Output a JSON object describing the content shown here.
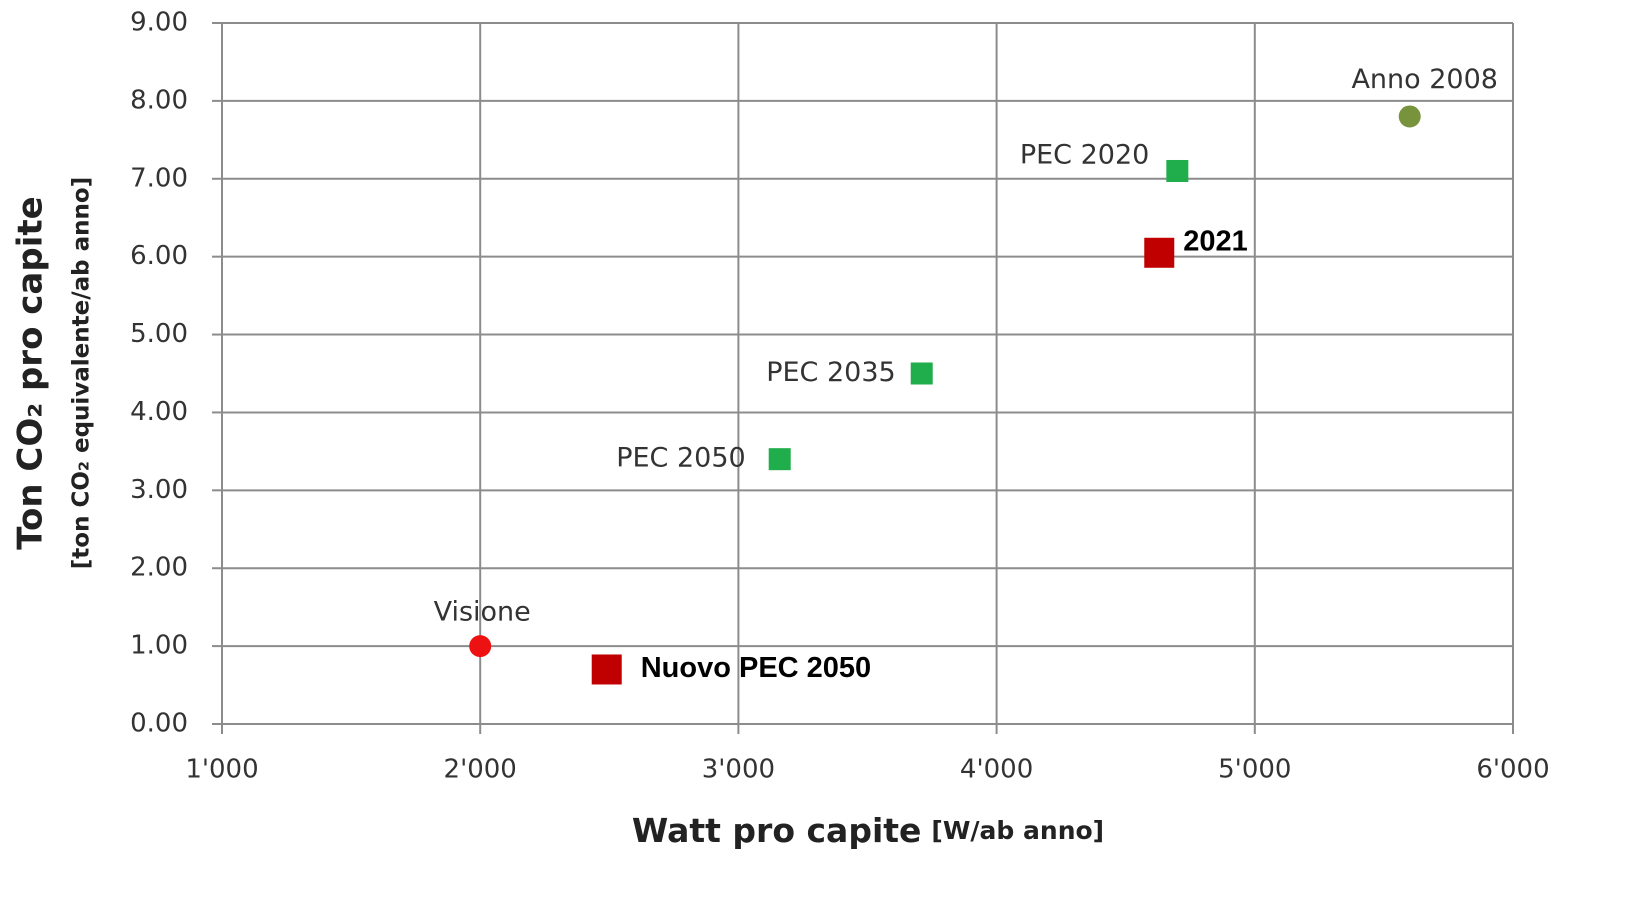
{
  "chart_data": {
    "type": "scatter",
    "y_axis_title": "Ton CO₂ pro capite",
    "y_axis_subtitle": "[ton CO₂ equivalente/ab anno]",
    "x_axis_title": "Watt pro capite",
    "x_axis_unit": "[W/ab anno]",
    "xlim": [
      1000,
      6000
    ],
    "xticks": [
      {
        "value": 1000,
        "label": "1'000"
      },
      {
        "value": 2000,
        "label": "2'000"
      },
      {
        "value": 3000,
        "label": "3'000"
      },
      {
        "value": 4000,
        "label": "4'000"
      },
      {
        "value": 5000,
        "label": "5'000"
      },
      {
        "value": 6000,
        "label": "6'000"
      }
    ],
    "ylim": [
      0,
      9
    ],
    "yticks": [
      {
        "value": 0,
        "label": "0.00"
      },
      {
        "value": 1,
        "label": "1.00"
      },
      {
        "value": 2,
        "label": "2.00"
      },
      {
        "value": 3,
        "label": "3.00"
      },
      {
        "value": 4,
        "label": "4.00"
      },
      {
        "value": 5,
        "label": "5.00"
      },
      {
        "value": 6,
        "label": "6.00"
      },
      {
        "value": 7,
        "label": "7.00"
      },
      {
        "value": 8,
        "label": "8.00"
      },
      {
        "value": 9,
        "label": "9.00"
      }
    ],
    "grid": true,
    "points": [
      {
        "name": "Anno 2008",
        "x": 5600,
        "y": 7.8,
        "color": "#77933c",
        "marker": "circle"
      },
      {
        "name": "PEC 2020",
        "x": 4700,
        "y": 7.1,
        "color": "#1fae4b",
        "marker": "square"
      },
      {
        "name": "2021",
        "x": 4630,
        "y": 6.05,
        "color": "#c00000",
        "marker": "square"
      },
      {
        "name": "PEC 2035",
        "x": 3710,
        "y": 4.5,
        "color": "#1fae4b",
        "marker": "square"
      },
      {
        "name": "PEC 2050",
        "x": 3160,
        "y": 3.4,
        "color": "#1fae4b",
        "marker": "square"
      },
      {
        "name": "Visione",
        "x": 2000,
        "y": 1.0,
        "color": "#ee1111",
        "marker": "circle"
      },
      {
        "name": "Nuovo PEC 2050",
        "x": 2490,
        "y": 0.7,
        "color": "#c00000",
        "marker": "square"
      }
    ]
  }
}
